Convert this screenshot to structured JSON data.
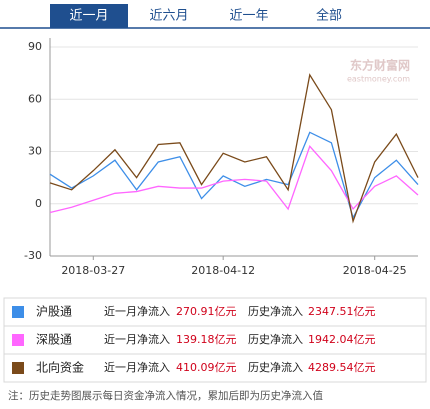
{
  "tabs": [
    "近一月",
    "近六月",
    "近一年",
    "全部"
  ],
  "chart_data": {
    "type": "line",
    "watermark": "东方财富网",
    "watermark_sub": "eastmoney.com",
    "categories": [
      null,
      null,
      "2018-03-27",
      null,
      null,
      null,
      null,
      null,
      "2018-04-12",
      null,
      null,
      null,
      null,
      null,
      null,
      "2018-04-25",
      null,
      null
    ],
    "ylim": [
      -30,
      90
    ],
    "yticks": [
      90,
      60,
      30,
      0,
      -30
    ],
    "grid": true,
    "legend_month_label": "近一月净流入",
    "legend_total_label": "历史净流入",
    "series": [
      {
        "name": "沪股通",
        "color": "#3d8ee8",
        "month_flow": "270.91亿元",
        "total_flow": "2347.51亿元",
        "values": [
          17,
          9,
          16,
          25,
          8,
          24,
          27,
          3,
          16,
          10,
          14,
          11,
          41,
          35,
          -8,
          15,
          25,
          11
        ]
      },
      {
        "name": "深股通",
        "color": "#ff66ff",
        "month_flow": "139.18亿元",
        "total_flow": "1942.04亿元",
        "values": [
          -5,
          -2,
          2,
          6,
          7,
          10,
          9,
          9,
          13,
          14,
          13,
          -3,
          33,
          19,
          -3,
          10,
          16,
          5
        ]
      },
      {
        "name": "北向资金",
        "color": "#7a4a1a",
        "month_flow": "410.09亿元",
        "total_flow": "4289.54亿元",
        "values": [
          12,
          8,
          19,
          31,
          15,
          34,
          35,
          11,
          29,
          24,
          27,
          8,
          74,
          54,
          -10,
          24,
          40,
          15
        ]
      }
    ]
  },
  "note": "注：历史走势图展示每日资金净流入情况，累加后即为历史净流入值"
}
